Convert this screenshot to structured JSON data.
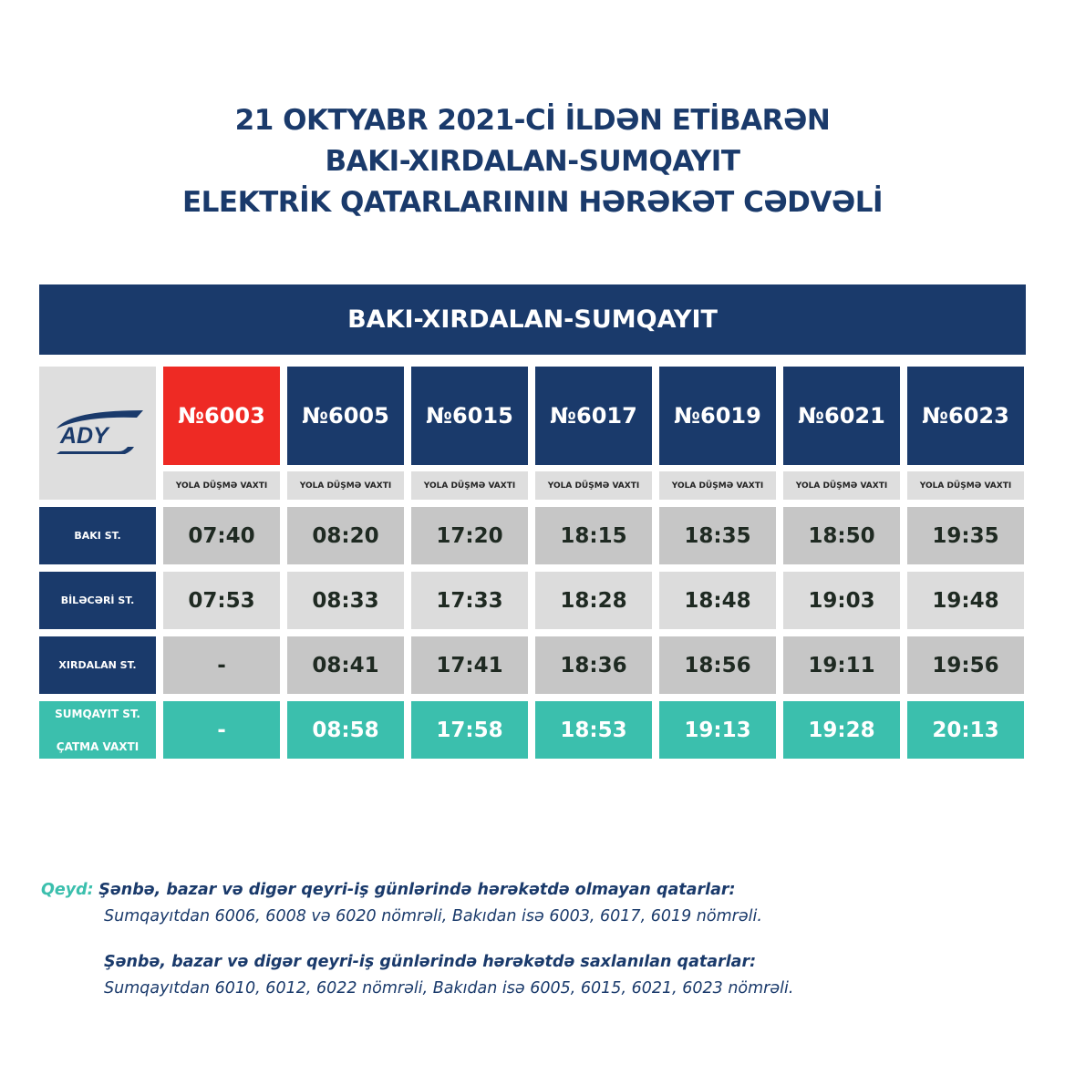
{
  "title": {
    "line1": "21 OKTYABR 2021-Cİ İLDƏN ETİBARƏN",
    "line2": "BAKI-XIRDALAN-SUMQAYIT",
    "line3": "ELEKTRİK QATARLARININ HƏRƏKƏT CƏDVƏLİ"
  },
  "banner": "BAKI-XIRDALAN-SUMQAYIT",
  "logo": "ADY",
  "colors": {
    "navy": "#1a3a6b",
    "red": "#ee2a24",
    "teal": "#3bbfad"
  },
  "trains": [
    "№6003",
    "№6005",
    "№6015",
    "№6017",
    "№6019",
    "№6021",
    "№6023"
  ],
  "sub_label": "YOLA DÜŞMƏ VAXTI",
  "rows": [
    {
      "station": "BAKI ST.",
      "times": [
        "07:40",
        "08:20",
        "17:20",
        "18:15",
        "18:35",
        "18:50",
        "19:35"
      ]
    },
    {
      "station": "BİLƏCƏRİ ST.",
      "times": [
        "07:53",
        "08:33",
        "17:33",
        "18:28",
        "18:48",
        "19:03",
        "19:48"
      ]
    },
    {
      "station": "XIRDALAN ST.",
      "times": [
        "-",
        "08:41",
        "17:41",
        "18:36",
        "18:56",
        "19:11",
        "19:56"
      ]
    },
    {
      "station": "SUMQAYIT ST.",
      "station2": "ÇATMA VAXTI",
      "times": [
        "-",
        "08:58",
        "17:58",
        "18:53",
        "19:13",
        "19:28",
        "20:13"
      ]
    }
  ],
  "notes": {
    "label": "Qeyd:",
    "heading1": "Şənbə, bazar və digər qeyri-iş günlərində hərəkətdə olmayan qatarlar:",
    "text1": "Sumqayıtdan 6006, 6008 və 6020 nömrəli, Bakıdan isə 6003, 6017, 6019 nömrəli.",
    "heading2": "Şənbə, bazar və digər qeyri-iş günlərində hərəkətdə saxlanılan qatarlar:",
    "text2": "Sumqayıtdan  6010, 6012, 6022 nömrəli, Bakıdan isə 6005, 6015, 6021, 6023 nömrəli."
  }
}
